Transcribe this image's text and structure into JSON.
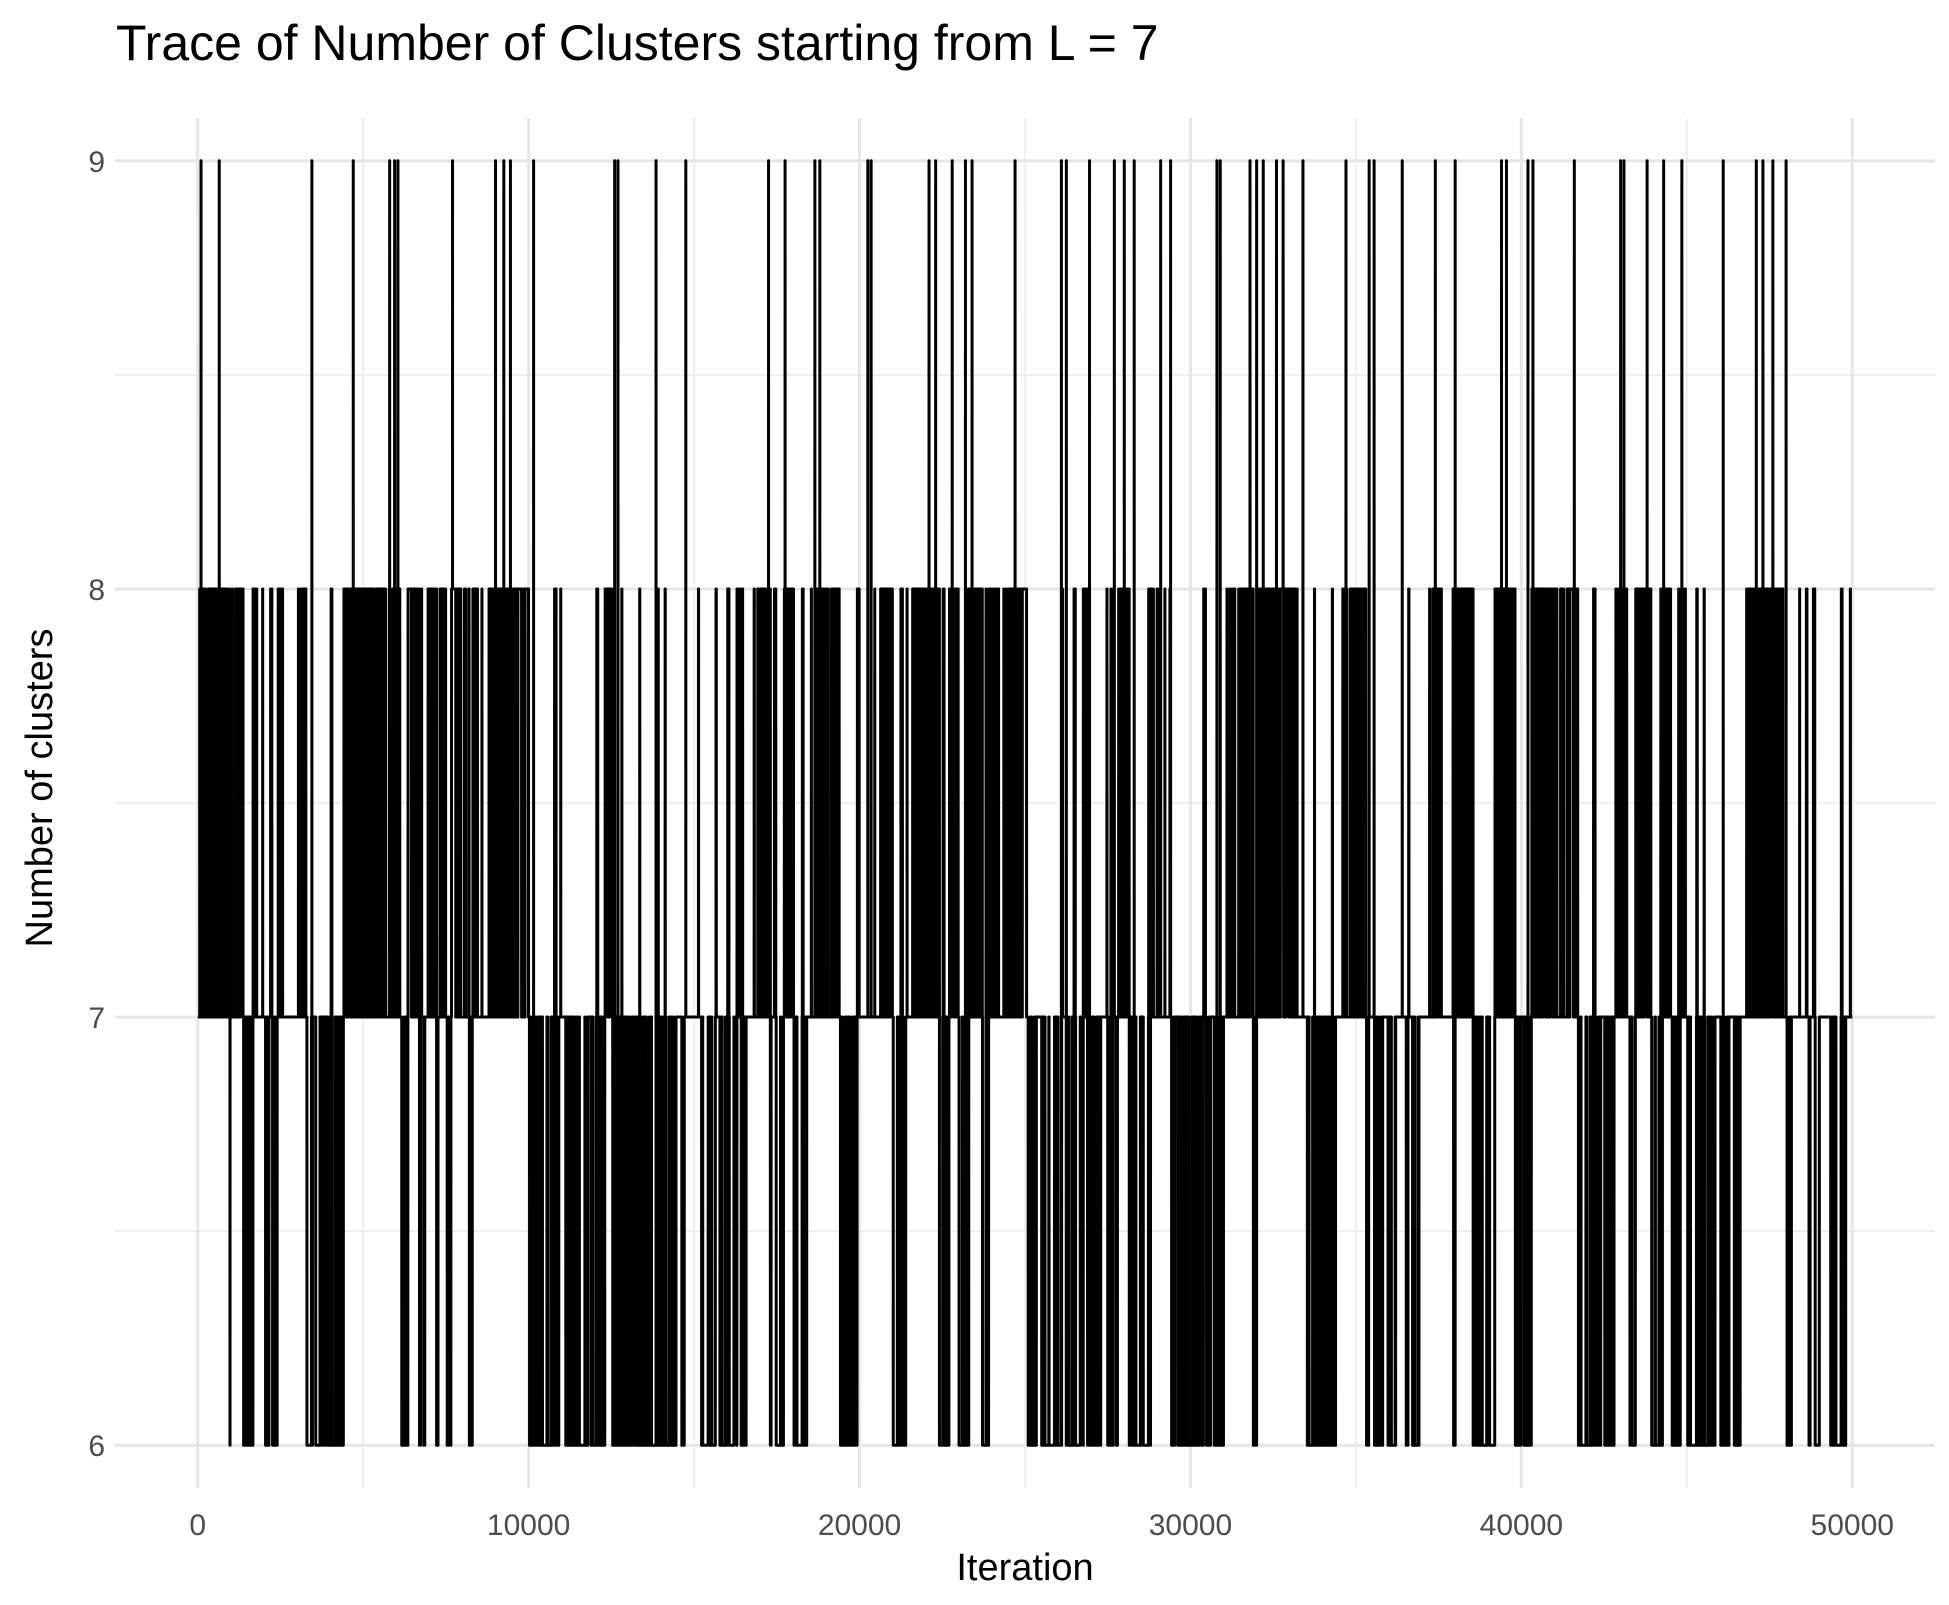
{
  "chart_data": {
    "type": "line",
    "title": "Trace of Number of Clusters starting from L = 7",
    "xlabel": "Iteration",
    "ylabel": "Number of clusters",
    "xlim": [
      -2500,
      52500
    ],
    "ylim": [
      5.9,
      9.1
    ],
    "x_ticks": [
      0,
      10000,
      20000,
      30000,
      40000,
      50000
    ],
    "y_ticks": [
      6,
      7,
      8,
      9
    ],
    "x_tick_labels": [
      "0",
      "10000",
      "20000",
      "30000",
      "40000",
      "50000"
    ],
    "y_tick_labels": [
      "6",
      "7",
      "8",
      "9"
    ],
    "grid": true,
    "legend": "none",
    "line_color": "#000000",
    "series": [
      {
        "x_start": 1,
        "x_end": 50000,
        "start_value": 7,
        "levels": [
          6,
          7,
          8,
          9
        ],
        "spikes_to_9_at": [
          100,
          650,
          3450,
          4700,
          5800,
          5950,
          6050,
          7700,
          9000,
          9250,
          9450,
          10150,
          12600,
          12700,
          13850,
          14750,
          17250,
          17750,
          18650,
          18800,
          20250,
          20350,
          22100,
          22300,
          22800,
          23200,
          23400,
          24700,
          26100,
          26250,
          26950,
          27700,
          28000,
          28300,
          29100,
          29400,
          30800,
          30900,
          31800,
          32000,
          32200,
          32600,
          32800,
          33400,
          34700,
          35400,
          35550,
          36400,
          37400,
          38000,
          39400,
          39550,
          40200,
          40350,
          41600,
          43000,
          43100,
          43800,
          44300,
          44850,
          46100,
          47100,
          47300,
          47600,
          48000
        ],
        "runs_with_dips_to_6": [
          [
            900,
            1000
          ],
          [
            1350,
            1700
          ],
          [
            2000,
            2400
          ],
          [
            3100,
            4400
          ],
          [
            6100,
            6350
          ],
          [
            6700,
            6900
          ],
          [
            7150,
            7300
          ],
          [
            7500,
            7650
          ],
          [
            8150,
            8350
          ],
          [
            10000,
            10900
          ],
          [
            11050,
            12300
          ],
          [
            12500,
            14700
          ],
          [
            15200,
            16600
          ],
          [
            17300,
            17700
          ],
          [
            18000,
            18400
          ],
          [
            19400,
            20000
          ],
          [
            21000,
            21400
          ],
          [
            22400,
            22700
          ],
          [
            22900,
            23300
          ],
          [
            23700,
            23900
          ],
          [
            25000,
            27300
          ],
          [
            27500,
            27800
          ],
          [
            28150,
            28800
          ],
          [
            29400,
            31100
          ],
          [
            31900,
            32000
          ],
          [
            33500,
            34400
          ],
          [
            35300,
            36200
          ],
          [
            36500,
            36900
          ],
          [
            37950,
            38000
          ],
          [
            38500,
            39200
          ],
          [
            39800,
            40300
          ],
          [
            41700,
            42800
          ],
          [
            43200,
            43500
          ],
          [
            43800,
            44300
          ],
          [
            44500,
            44800
          ],
          [
            45000,
            46600
          ],
          [
            48000,
            48200
          ],
          [
            48600,
            49000
          ],
          [
            49300,
            49800
          ]
        ],
        "runs_at_7": [
          [
            1800,
            2000
          ],
          [
            2600,
            3100
          ],
          [
            4300,
            4400
          ],
          [
            8400,
            8800
          ],
          [
            10900,
            11050
          ],
          [
            14700,
            15200
          ],
          [
            16600,
            16800
          ],
          [
            18400,
            18600
          ],
          [
            20000,
            20600
          ],
          [
            21400,
            21600
          ],
          [
            24200,
            24500
          ],
          [
            27300,
            27500
          ],
          [
            29000,
            29400
          ],
          [
            31100,
            31400
          ],
          [
            33200,
            33500
          ],
          [
            34400,
            34600
          ],
          [
            36200,
            36500
          ],
          [
            36900,
            37300
          ],
          [
            37600,
            37900
          ],
          [
            42800,
            43000
          ],
          [
            46600,
            46800
          ],
          [
            47900,
            48600
          ],
          [
            49000,
            49300
          ],
          [
            49800,
            50000
          ]
        ]
      }
    ]
  }
}
